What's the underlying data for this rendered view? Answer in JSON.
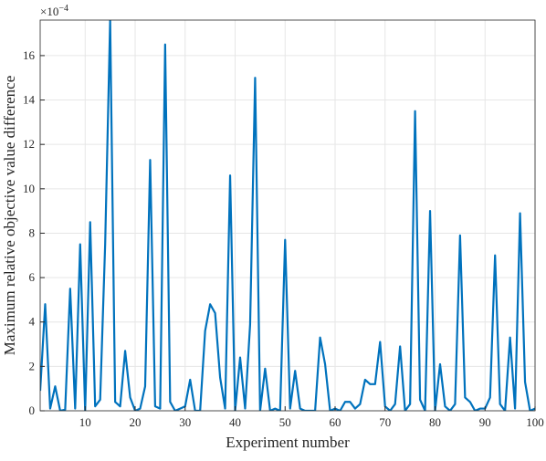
{
  "chart_data": {
    "type": "line",
    "x_label": "Experiment number",
    "y_label": "Maximum relative objective value difference",
    "y_multiplier": {
      "base": "×10",
      "exponent": "−4"
    },
    "x": [
      1,
      2,
      3,
      4,
      5,
      6,
      7,
      8,
      9,
      10,
      11,
      12,
      13,
      14,
      15,
      16,
      17,
      18,
      19,
      20,
      21,
      22,
      23,
      24,
      25,
      26,
      27,
      28,
      29,
      30,
      31,
      32,
      33,
      34,
      35,
      36,
      37,
      38,
      39,
      40,
      41,
      42,
      43,
      44,
      45,
      46,
      47,
      48,
      49,
      50,
      51,
      52,
      53,
      54,
      55,
      56,
      57,
      58,
      59,
      60,
      61,
      62,
      63,
      64,
      65,
      66,
      67,
      68,
      69,
      70,
      71,
      72,
      73,
      74,
      75,
      76,
      77,
      78,
      79,
      80,
      81,
      82,
      83,
      84,
      85,
      86,
      87,
      88,
      89,
      90,
      91,
      92,
      93,
      94,
      95,
      96,
      97,
      98,
      99,
      100
    ],
    "series": [
      {
        "color": "#0072bd",
        "values": [
          0.9,
          4.8,
          0.1,
          1.1,
          0.0,
          0.05,
          5.5,
          0.1,
          7.5,
          0.0,
          8.5,
          0.2,
          0.5,
          7.5,
          17.6,
          0.4,
          0.2,
          2.7,
          0.6,
          0.0,
          0.1,
          1.1,
          11.3,
          0.2,
          0.1,
          16.5,
          0.4,
          0.0,
          0.1,
          0.2,
          1.4,
          0.0,
          0.0,
          3.6,
          4.8,
          4.4,
          1.5,
          0.1,
          10.6,
          0.0,
          2.4,
          0.1,
          3.9,
          15.0,
          0.0,
          1.9,
          0.0,
          0.1,
          0.0,
          7.7,
          0.1,
          1.8,
          0.1,
          0.0,
          0.0,
          0.0,
          3.3,
          2.1,
          0.0,
          0.1,
          0.0,
          0.4,
          0.4,
          0.1,
          0.3,
          1.4,
          1.2,
          1.2,
          3.1,
          0.2,
          0.0,
          0.3,
          2.9,
          0.0,
          0.3,
          13.5,
          0.5,
          0.0,
          9.0,
          0.0,
          2.1,
          0.2,
          0.0,
          0.3,
          7.9,
          0.6,
          0.4,
          0.0,
          0.1,
          0.1,
          0.6,
          7.0,
          0.3,
          0.0,
          3.3,
          0.1,
          8.9,
          1.3,
          0.0,
          0.1
        ]
      }
    ],
    "xlim": [
      1,
      100
    ],
    "ylim": [
      0,
      17.6
    ],
    "xticks": [
      10,
      20,
      30,
      40,
      50,
      60,
      70,
      80,
      90,
      100
    ],
    "yticks": [
      0,
      2,
      4,
      6,
      8,
      10,
      12,
      14,
      16
    ],
    "grid": true
  }
}
